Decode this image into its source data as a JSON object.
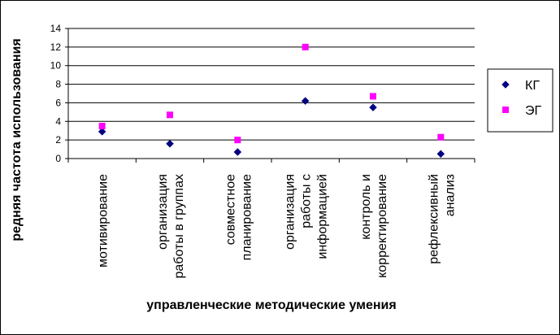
{
  "chart_data": {
    "type": "scatter",
    "title": "",
    "xlabel": "управленческие методические умения",
    "ylabel": "редняя частота использования",
    "ylim": [
      0,
      14
    ],
    "yticks": [
      0,
      2,
      4,
      6,
      8,
      10,
      12,
      14
    ],
    "grid": true,
    "legend_position": "right",
    "categories": [
      [
        "мотивирование"
      ],
      [
        "организация",
        "работы в группах"
      ],
      [
        "совместное",
        "планирование"
      ],
      [
        "организация",
        "работы с",
        "информацией"
      ],
      [
        "контроль и",
        "корректирование"
      ],
      [
        "рефлексивный",
        "анализ"
      ]
    ],
    "series": [
      {
        "name": "КГ",
        "marker": "diamond",
        "color": "#000080",
        "values": [
          2.9,
          1.6,
          0.7,
          6.2,
          5.5,
          0.5
        ]
      },
      {
        "name": "ЭГ",
        "marker": "square",
        "color": "#FF00FF",
        "values": [
          3.5,
          4.7,
          2.0,
          12.0,
          6.7,
          2.3
        ]
      }
    ]
  }
}
